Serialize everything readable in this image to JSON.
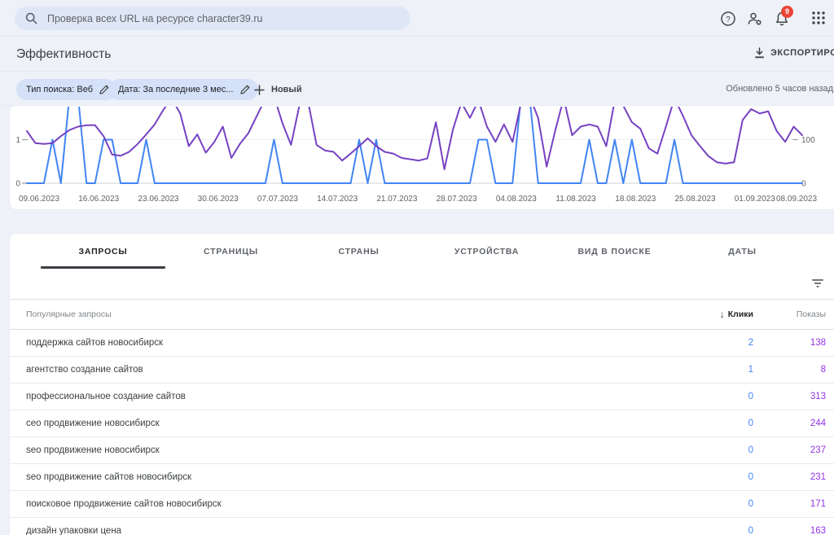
{
  "topbar": {
    "search_placeholder": "Проверка всех URL на ресурсе character39.ru",
    "notification_count": "9"
  },
  "header": {
    "title": "Эффективность",
    "export_label": "ЭКСПОРТИРОВАТЬ"
  },
  "filters": {
    "chip_search_type": "Тип поиска: Веб",
    "chip_date": "Дата: За последние 3 мес...",
    "new_label": "Новый",
    "updated": "Обновлено 5 часов назад"
  },
  "chart_data": {
    "type": "line",
    "x_tick_labels": [
      "09.06.2023",
      "16.06.2023",
      "23.06.2023",
      "30.06.2023",
      "07.07.2023",
      "14.07.2023",
      "21.07.2023",
      "28.07.2023",
      "04.08.2023",
      "11.08.2023",
      "18.08.2023",
      "25.08.2023",
      "01.09.2023",
      "08.09.2023"
    ],
    "left_axis": {
      "ticks": [
        1,
        0
      ],
      "clip_max": 1.78
    },
    "right_axis": {
      "ticks": [
        100,
        0
      ],
      "clip_max": 178
    },
    "series": [
      {
        "name": "clicks",
        "axis": "left",
        "color": "#4285f4",
        "values": [
          0,
          0,
          0,
          1,
          0,
          2,
          2,
          0,
          0,
          1,
          1,
          0,
          0,
          0,
          1,
          0,
          0,
          0,
          0,
          0,
          0,
          0,
          0,
          0,
          0,
          0,
          0,
          0,
          0,
          1,
          0,
          0,
          0,
          0,
          0,
          0,
          0,
          0,
          0,
          1,
          0,
          1,
          0,
          0,
          0,
          0,
          0,
          0,
          0,
          0,
          0,
          0,
          0,
          1,
          1,
          0,
          0,
          0,
          2,
          2,
          0,
          0,
          0,
          0,
          0,
          0,
          1,
          0,
          0,
          1,
          0,
          1,
          0,
          0,
          0,
          0,
          1,
          0,
          0,
          0,
          0,
          0,
          0,
          0,
          0,
          0,
          0,
          0,
          0,
          0,
          0,
          0
        ]
      },
      {
        "name": "impressions",
        "axis": "right",
        "color": "#7642c2",
        "values": [
          120,
          92,
          90,
          92,
          108,
          122,
          130,
          133,
          133,
          108,
          66,
          63,
          72,
          90,
          112,
          135,
          168,
          195,
          160,
          85,
          112,
          70,
          95,
          130,
          58,
          90,
          115,
          155,
          195,
          200,
          138,
          88,
          180,
          188,
          88,
          75,
          72,
          52,
          68,
          85,
          103,
          85,
          72,
          68,
          58,
          55,
          52,
          57,
          140,
          32,
          123,
          185,
          150,
          190,
          130,
          95,
          135,
          95,
          185,
          200,
          150,
          38,
          120,
          195,
          110,
          130,
          135,
          130,
          85,
          190,
          178,
          140,
          125,
          80,
          68,
          130,
          195,
          155,
          110,
          85,
          62,
          48,
          45,
          48,
          145,
          170,
          160,
          165,
          120,
          95,
          130,
          110
        ]
      }
    ]
  },
  "tabs": [
    "ЗАПРОСЫ",
    "СТРАНИЦЫ",
    "СТРАНЫ",
    "УСТРОЙСТВА",
    "ВИД В ПОИСКЕ",
    "ДАТЫ"
  ],
  "table": {
    "col_query": "Популярные запросы",
    "col_clicks": "Клики",
    "col_impressions": "Показы",
    "clicks_color": "#4285f4",
    "impressions_color": "#9334e6",
    "rows": [
      {
        "query": "поддержка сайтов новосибирск",
        "clicks": "2",
        "impressions": "138"
      },
      {
        "query": "агентство создание сайтов",
        "clicks": "1",
        "impressions": "8"
      },
      {
        "query": "профессиональное создание сайтов",
        "clicks": "0",
        "impressions": "313"
      },
      {
        "query": "сео продвижение новосибирск",
        "clicks": "0",
        "impressions": "244"
      },
      {
        "query": "seo продвижение новосибирск",
        "clicks": "0",
        "impressions": "237"
      },
      {
        "query": "seo продвижение сайтов новосибирск",
        "clicks": "0",
        "impressions": "231"
      },
      {
        "query": "поисковое продвижение сайтов новосибирск",
        "clicks": "0",
        "impressions": "171"
      },
      {
        "query": "дизайн упаковки цена",
        "clicks": "0",
        "impressions": "163"
      }
    ]
  }
}
